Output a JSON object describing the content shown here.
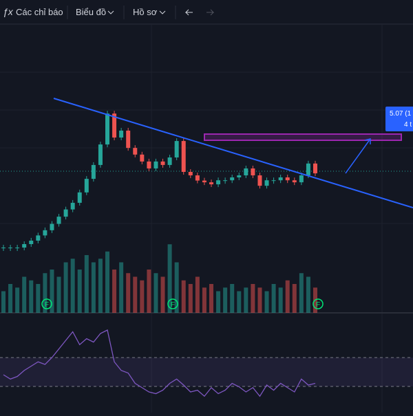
{
  "toolbar": {
    "indicators": "Các chỉ báo",
    "chart": "Biểu đồ",
    "profile": "Hồ sơ"
  },
  "price_label": {
    "line1": "5.07 (1",
    "line2": "4 t"
  },
  "chart_data": {
    "type": "candlestick",
    "close": [
      23.8,
      23.8,
      23.8,
      25,
      26.2,
      28,
      29.8,
      32,
      34.5,
      37,
      39.3,
      42.9,
      47.6,
      52.4,
      59.5,
      70.2,
      61.9,
      64.3,
      58.3,
      56.0,
      53.6,
      51.2,
      53.6,
      52.4,
      55,
      60.7,
      50.0,
      48.8,
      47,
      46.4,
      45.7,
      47.1,
      47.1,
      48.1,
      48.8,
      51.2,
      48.8,
      45.2,
      47.1,
      47.1,
      48.1,
      47.1,
      46.4,
      48.8,
      52.9,
      49.5
    ],
    "ylim": [
      0,
      100
    ],
    "volume": [
      30,
      40,
      35,
      50,
      45,
      40,
      55,
      60,
      50,
      70,
      75,
      60,
      80,
      70,
      75,
      85,
      60,
      70,
      55,
      50,
      45,
      60,
      55,
      50,
      95,
      70,
      45,
      40,
      50,
      35,
      40,
      30,
      35,
      40,
      30,
      35,
      40,
      35,
      30,
      40,
      35,
      45,
      40,
      55,
      50,
      35
    ],
    "volume_lim": [
      0,
      100
    ],
    "rsi": [
      40,
      35,
      38,
      45,
      50,
      55,
      52,
      60,
      70,
      80,
      90,
      75,
      82,
      78,
      88,
      92,
      55,
      45,
      42,
      30,
      25,
      20,
      18,
      22,
      30,
      35,
      28,
      20,
      22,
      15,
      25,
      18,
      22,
      30,
      26,
      20,
      25,
      15,
      28,
      22,
      30,
      25,
      20,
      35,
      28,
      30
    ],
    "rsi_lim": [
      0,
      100
    ],
    "up_color": "#26a69a",
    "down_color": "#ef5350",
    "rsi_color": "#7e57c2"
  }
}
